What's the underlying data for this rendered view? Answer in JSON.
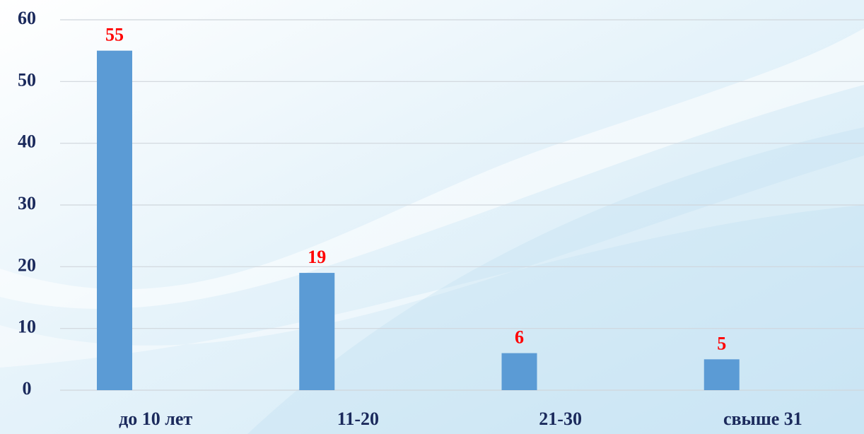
{
  "chart_data": {
    "type": "bar",
    "categories": [
      "до 10 лет",
      "11-20",
      "21-30",
      "свыше 31"
    ],
    "values": [
      55,
      19,
      6,
      5
    ],
    "color": "#5b9bd5",
    "ylim": [
      0,
      60
    ],
    "yticks": [
      0,
      10,
      20,
      30,
      40,
      50,
      60
    ],
    "grid": true
  }
}
